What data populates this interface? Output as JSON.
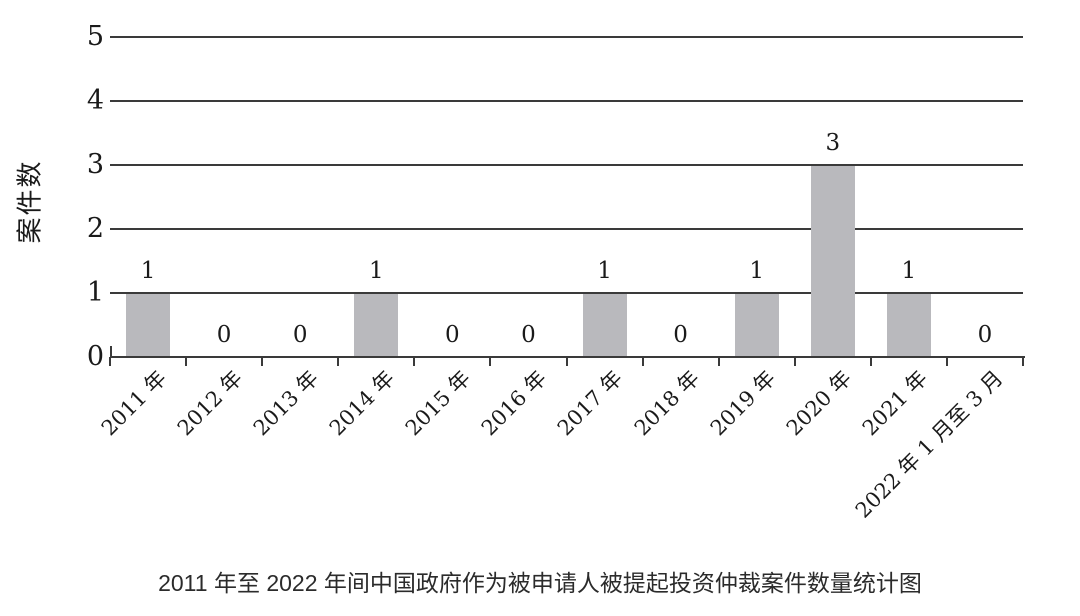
{
  "chart_data": {
    "type": "bar",
    "categories": [
      "2011 年",
      "2012 年",
      "2013 年",
      "2014 年",
      "2015 年",
      "2016 年",
      "2017 年",
      "2018 年",
      "2019 年",
      "2020 年",
      "2021 年",
      "2022 年 1 月至 3 月"
    ],
    "values": [
      1,
      0,
      0,
      1,
      0,
      0,
      1,
      0,
      1,
      3,
      1,
      0
    ],
    "data_labels": [
      "1",
      "0",
      "0",
      "1",
      "0",
      "0",
      "1",
      "0",
      "1",
      "3",
      "1",
      "0"
    ],
    "title": "2011 年至 2022 年间中国政府作为被申请人被提起投资仲裁案件数量统计图",
    "xlabel": "",
    "ylabel": "案件数",
    "ylim": [
      0,
      5
    ],
    "y_ticks": [
      0,
      1,
      2,
      3,
      4,
      5
    ],
    "grid": true,
    "legend": "none",
    "bar_color": "#b9b9bd",
    "line_color": "#3a3a3a",
    "text_color": "#1a1a1a"
  },
  "caption": "2011 年至 2022 年间中国政府作为被申请人被提起投资仲裁案件数量统计图"
}
